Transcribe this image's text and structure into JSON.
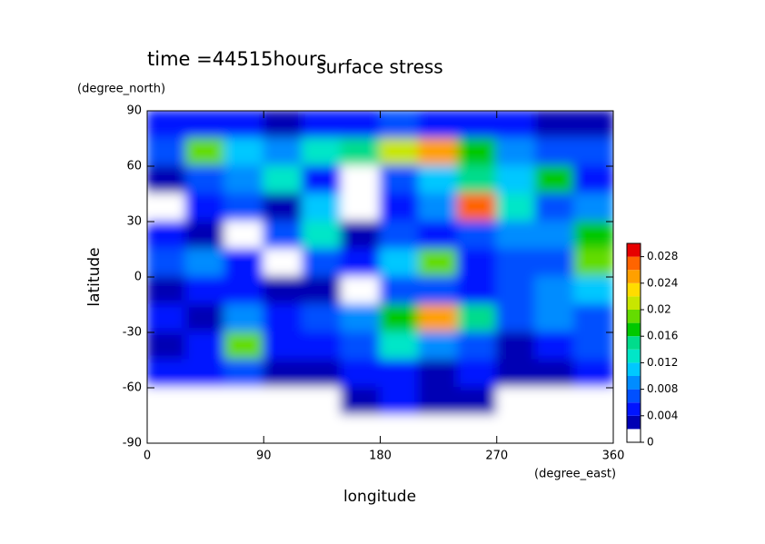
{
  "chart_data": {
    "type": "contour",
    "title": "surface stress",
    "subtitle": "time =44515hours",
    "x_label": "longitude",
    "y_label": "latitude",
    "x_unit": "(degree_east)",
    "y_unit": "(degree_north)",
    "xlim": [
      0,
      360
    ],
    "ylim": [
      -90,
      90
    ],
    "xticks": [
      0,
      90,
      180,
      270,
      360
    ],
    "yticks": [
      90,
      60,
      30,
      0,
      -30,
      -60,
      -90
    ],
    "x": [
      15,
      45,
      75,
      105,
      135,
      165,
      195,
      225,
      255,
      285,
      315,
      345
    ],
    "y": [
      82.5,
      67.5,
      52.5,
      37.5,
      22.5,
      7.5,
      -7.5,
      -22.5,
      -37.5,
      -52.5,
      -67.5,
      -82.5
    ],
    "z": [
      [
        0.004,
        0.005,
        0.004,
        0.003,
        0.004,
        0.005,
        0.006,
        0.005,
        0.004,
        0.004,
        0.003,
        0.003
      ],
      [
        0.006,
        0.018,
        0.01,
        0.008,
        0.012,
        0.014,
        0.02,
        0.024,
        0.016,
        0.008,
        0.006,
        0.006
      ],
      [
        0.003,
        0.006,
        0.008,
        0.012,
        0.004,
        0.001,
        0.006,
        0.01,
        0.014,
        0.01,
        0.016,
        0.004
      ],
      [
        0.001,
        0.004,
        0.006,
        0.002,
        0.01,
        0.001,
        0.004,
        0.008,
        0.026,
        0.012,
        0.006,
        0.008
      ],
      [
        0.004,
        0.003,
        0.001,
        0.006,
        0.012,
        0.003,
        0.006,
        0.004,
        0.006,
        0.008,
        0.008,
        0.016
      ],
      [
        0.006,
        0.008,
        0.004,
        0.001,
        0.006,
        0.004,
        0.01,
        0.018,
        0.004,
        0.006,
        0.006,
        0.018
      ],
      [
        0.003,
        0.004,
        0.004,
        0.003,
        0.002,
        0.001,
        0.006,
        0.006,
        0.004,
        0.006,
        0.008,
        0.01
      ],
      [
        0.004,
        0.003,
        0.008,
        0.004,
        0.006,
        0.008,
        0.016,
        0.024,
        0.014,
        0.006,
        0.008,
        0.006
      ],
      [
        0.002,
        0.004,
        0.018,
        0.004,
        0.004,
        0.006,
        0.012,
        0.008,
        0.006,
        0.003,
        0.004,
        0.006
      ],
      [
        0.004,
        0.004,
        0.006,
        0.003,
        0.002,
        0.004,
        0.005,
        0.003,
        0.004,
        0.003,
        0.003,
        0.004
      ],
      [
        0.001,
        0.001,
        0.001,
        0.001,
        0.001,
        0.002,
        0.004,
        0.003,
        0.002,
        0.001,
        0.001,
        0.001
      ],
      [
        0,
        0,
        0,
        0,
        0,
        0,
        0,
        0,
        0,
        0,
        0,
        0
      ]
    ],
    "levels": [
      0,
      0.002,
      0.004,
      0.006,
      0.008,
      0.01,
      0.012,
      0.014,
      0.016,
      0.018,
      0.02,
      0.022,
      0.024,
      0.026,
      0.028,
      0.03
    ],
    "colors": [
      "#ffffff",
      "#0000b4",
      "#0014ff",
      "#0050ff",
      "#008cff",
      "#00c8ff",
      "#00e6c8",
      "#00dc8c",
      "#00c800",
      "#64dc00",
      "#c8e600",
      "#ffdc00",
      "#ffa000",
      "#ff6400",
      "#e60000"
    ],
    "colorbar_ticks": [
      0,
      0.004,
      0.008,
      0.012,
      0.016,
      0.02,
      0.024,
      0.028
    ]
  }
}
